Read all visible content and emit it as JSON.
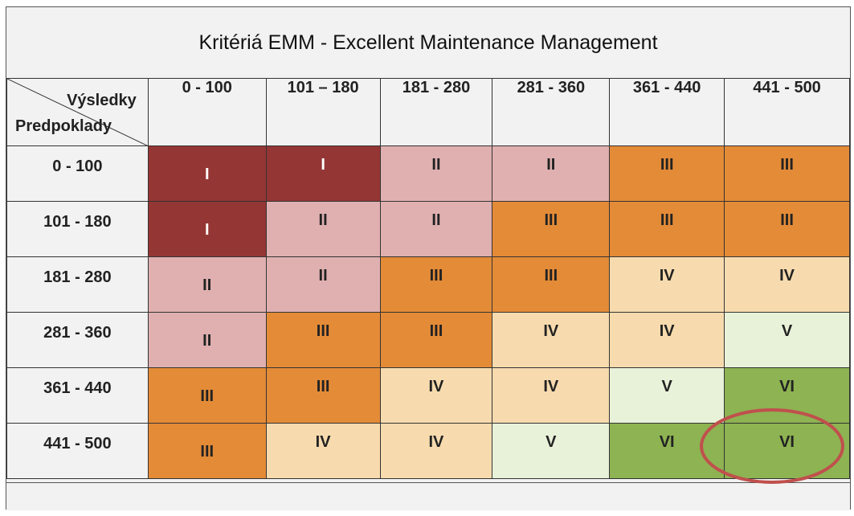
{
  "title": "Kritériá EMM - Excellent Maintenance Management",
  "corner": {
    "results_label": "Výsledky",
    "assumptions_label": "Predpoklady"
  },
  "columns": [
    "0 - 100",
    "101 – 180",
    "181 - 280",
    "281 - 360",
    "361 - 440",
    "441 - 500"
  ],
  "rows": [
    {
      "label": "0 - 100",
      "cells": [
        "I",
        "I",
        "II",
        "II",
        "III",
        "III"
      ],
      "levels": [
        1,
        1,
        2,
        2,
        3,
        3
      ]
    },
    {
      "label": "101 - 180",
      "cells": [
        "I",
        "II",
        "II",
        "III",
        "III",
        "III"
      ],
      "levels": [
        1,
        2,
        2,
        3,
        3,
        3
      ]
    },
    {
      "label": "181 - 280",
      "cells": [
        "II",
        "II",
        "III",
        "III",
        "IV",
        "IV"
      ],
      "levels": [
        2,
        2,
        3,
        3,
        4,
        4
      ]
    },
    {
      "label": "281 - 360",
      "cells": [
        "II",
        "III",
        "III",
        "IV",
        "IV",
        "V"
      ],
      "levels": [
        2,
        3,
        3,
        4,
        4,
        5
      ]
    },
    {
      "label": "361 - 440",
      "cells": [
        "III",
        "III",
        "IV",
        "IV",
        "V",
        "VI"
      ],
      "levels": [
        3,
        3,
        4,
        4,
        5,
        6
      ]
    },
    {
      "label": "441 - 500",
      "cells": [
        "III",
        "IV",
        "IV",
        "V",
        "VI",
        "VI"
      ],
      "levels": [
        3,
        4,
        4,
        5,
        6,
        6
      ]
    }
  ],
  "colors": {
    "I": "#943634",
    "II": "#e0b0b0",
    "III": "#e48b37",
    "IV": "#f7dbae",
    "V": "#e8f2d9",
    "VI": "#8db352",
    "highlight_ellipse": "#c0504d"
  },
  "highlight": {
    "row": 5,
    "col": 5
  }
}
